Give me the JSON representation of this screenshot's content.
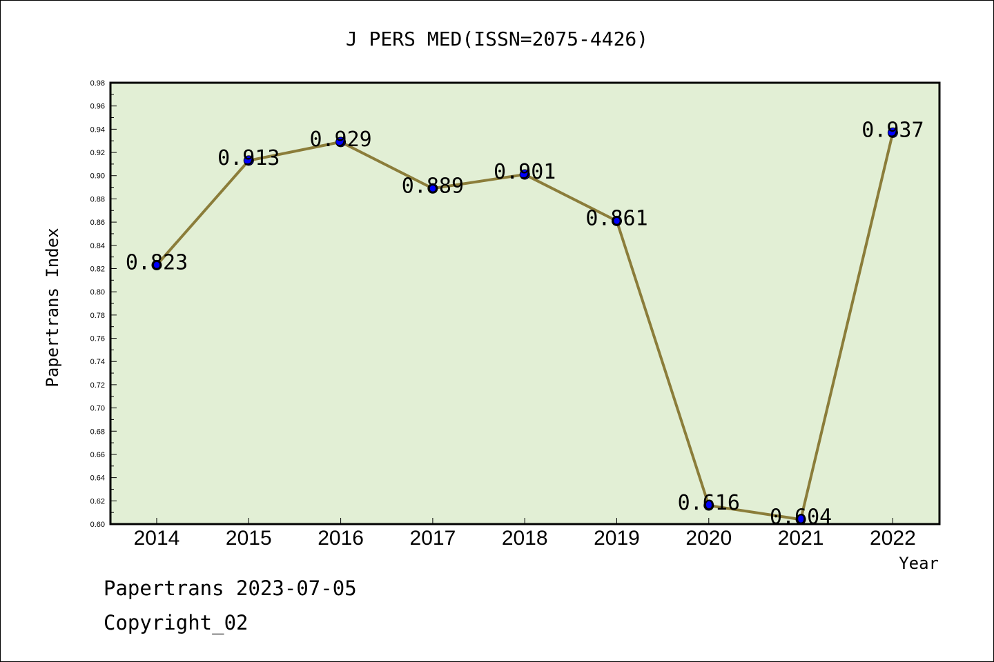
{
  "chart_data": {
    "type": "line",
    "title": "J PERS MED(ISSN=2075-4426)",
    "xlabel": "Year",
    "ylabel": "Papertrans Index",
    "categories": [
      "2014",
      "2015",
      "2016",
      "2017",
      "2018",
      "2019",
      "2020",
      "2021",
      "2022"
    ],
    "values": [
      0.823,
      0.913,
      0.929,
      0.889,
      0.901,
      0.861,
      0.616,
      0.604,
      0.937
    ],
    "value_labels": [
      "0.823",
      "0.913",
      "0.929",
      "0.889",
      "0.901",
      "0.861",
      "0.616",
      "0.604",
      "0.937"
    ],
    "ylim": [
      0.6,
      0.98
    ],
    "yticks": [
      "0.60",
      "0.62",
      "0.64",
      "0.66",
      "0.68",
      "0.70",
      "0.72",
      "0.74",
      "0.76",
      "0.78",
      "0.80",
      "0.82",
      "0.84",
      "0.86",
      "0.88",
      "0.90",
      "0.92",
      "0.94",
      "0.96",
      "0.98"
    ],
    "grid": false,
    "colors": {
      "plot_bg": "#e2efd5",
      "line": "#8b7d3a",
      "marker": "#0000ff"
    }
  },
  "footer": {
    "line1": "Papertrans 2023-07-05",
    "line2": "Copyright_02"
  }
}
